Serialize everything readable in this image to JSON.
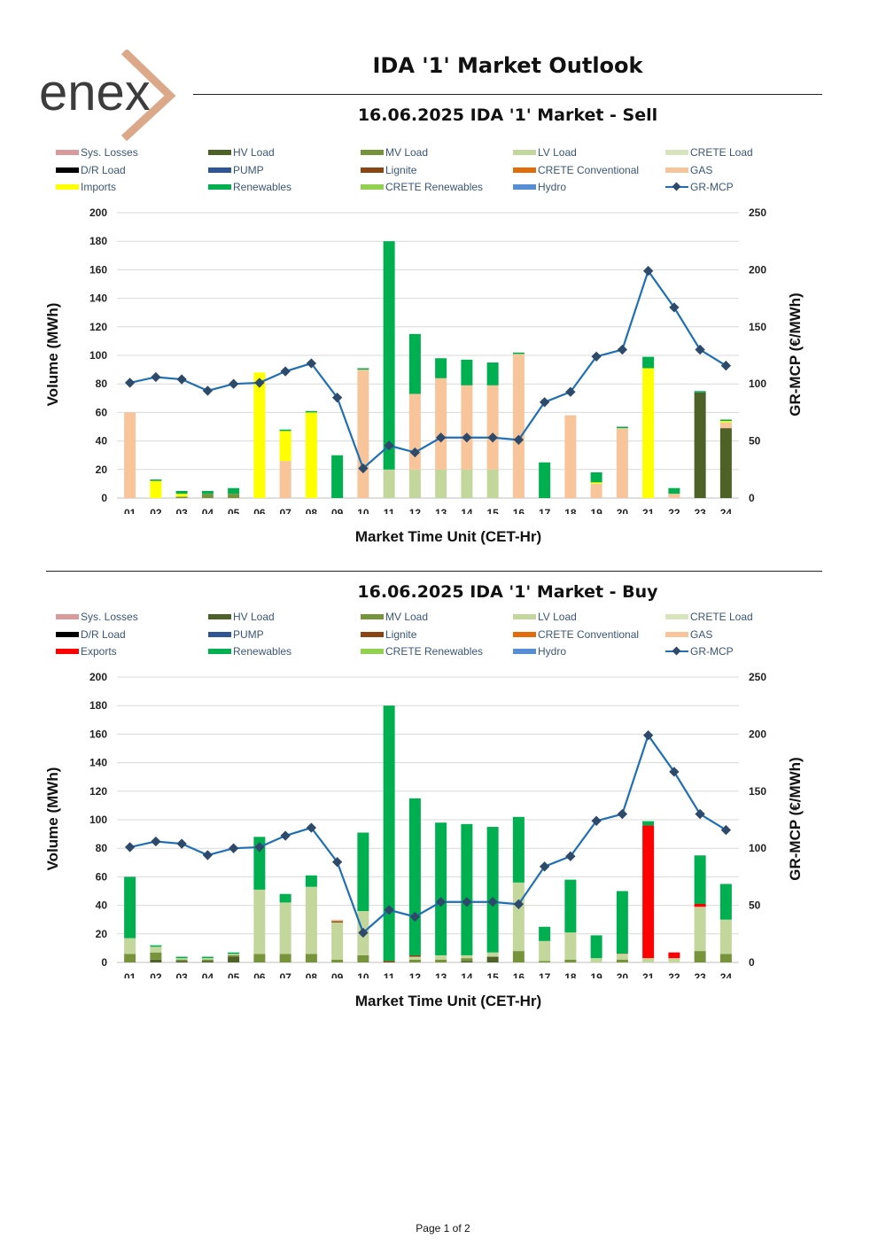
{
  "header": {
    "logo_text": "enex",
    "title": "IDA '1' Market Outlook"
  },
  "footer": {
    "page": "Page 1 of 2"
  },
  "colors": {
    "sys_losses": "#d89a9a",
    "hv_load": "#4e6228",
    "mv_load": "#77933c",
    "lv_load": "#c3d69b",
    "crete_load": "#d8e4bc",
    "dr_load": "#000000",
    "pump": "#2f5597",
    "lignite": "#8b4513",
    "crete_conventional": "#e36c0a",
    "gas": "#f8c49a",
    "imports": "#ffff00",
    "exports": "#ff0000",
    "renewables": "#00b050",
    "crete_renewables": "#92d050",
    "hydro": "#558ed5",
    "mcp_line": "#1f6fb5",
    "mcp_marker": "#2e4a6b"
  },
  "chart_data": [
    {
      "type": "bar",
      "stacked": true,
      "title": "16.06.2025  IDA '1' Market - Sell",
      "xlabel": "Market Time Unit (CET-Hr)",
      "ylabel": "Volume (MWh)",
      "y2label": "GR-MCP (€/MWh)",
      "ylim": [
        0,
        200
      ],
      "yticks": [
        0,
        20,
        40,
        60,
        80,
        100,
        120,
        140,
        160,
        180,
        200
      ],
      "y2lim": [
        0,
        250
      ],
      "y2ticks": [
        0,
        50,
        100,
        150,
        200,
        250
      ],
      "grid": true,
      "legend": [
        {
          "label": "Sys. Losses",
          "key": "sys_losses"
        },
        {
          "label": "HV Load",
          "key": "hv_load"
        },
        {
          "label": "MV Load",
          "key": "mv_load"
        },
        {
          "label": "LV Load",
          "key": "lv_load"
        },
        {
          "label": "CRETE Load",
          "key": "crete_load"
        },
        {
          "label": "D/R Load",
          "key": "dr_load"
        },
        {
          "label": "PUMP",
          "key": "pump"
        },
        {
          "label": "Lignite",
          "key": "lignite"
        },
        {
          "label": "CRETE Conventional",
          "key": "crete_conventional"
        },
        {
          "label": "GAS",
          "key": "gas"
        },
        {
          "label": "Imports",
          "key": "imports"
        },
        {
          "label": "Renewables",
          "key": "renewables"
        },
        {
          "label": "CRETE Renewables",
          "key": "crete_renewables"
        },
        {
          "label": "Hydro",
          "key": "hydro"
        },
        {
          "label": "GR-MCP",
          "key": "mcp_line",
          "line": true
        }
      ],
      "categories": [
        "01",
        "02",
        "03",
        "04",
        "05",
        "06",
        "07",
        "08",
        "09",
        "10",
        "11",
        "12",
        "13",
        "14",
        "15",
        "16",
        "17",
        "18",
        "19",
        "20",
        "21",
        "22",
        "23",
        "24"
      ],
      "series": [
        {
          "name": "HV Load",
          "key": "hv_load",
          "values": [
            0,
            0,
            0,
            0,
            0,
            0,
            0,
            0,
            0,
            0,
            0,
            0,
            0,
            0,
            0,
            0,
            0,
            0,
            0,
            0,
            0,
            0,
            74,
            49
          ]
        },
        {
          "name": "MV Load",
          "key": "mv_load",
          "values": [
            0,
            0,
            1,
            3,
            3,
            0,
            0,
            0,
            0,
            0,
            0,
            0,
            0,
            0,
            0,
            0,
            0,
            0,
            0,
            0,
            0,
            0,
            0,
            0
          ]
        },
        {
          "name": "LV Load",
          "key": "lv_load",
          "values": [
            0,
            0,
            0,
            0,
            0,
            0,
            0,
            0,
            0,
            0,
            20,
            20,
            20,
            20,
            20,
            0,
            0,
            0,
            0,
            0,
            0,
            0,
            0,
            0
          ]
        },
        {
          "name": "GAS",
          "key": "gas",
          "values": [
            60,
            0,
            0,
            0,
            0,
            0,
            26,
            0,
            0,
            90,
            0,
            53,
            64,
            59,
            59,
            101,
            0,
            58,
            10,
            49,
            0,
            3,
            0,
            4
          ]
        },
        {
          "name": "Imports",
          "key": "imports",
          "values": [
            0,
            12,
            2,
            0,
            0,
            88,
            21,
            60,
            0,
            0,
            0,
            0,
            0,
            0,
            0,
            0,
            0,
            0,
            1,
            0,
            91,
            0,
            0,
            1
          ]
        },
        {
          "name": "Renewables",
          "key": "renewables",
          "values": [
            0,
            1,
            2,
            2,
            4,
            0,
            1,
            1,
            30,
            1,
            160,
            42,
            14,
            18,
            16,
            1,
            25,
            0,
            7,
            1,
            8,
            4,
            1,
            1
          ]
        }
      ],
      "mcp": [
        101,
        106,
        104,
        94,
        100,
        101,
        111,
        118,
        88,
        26,
        46,
        40,
        53,
        53,
        53,
        51,
        84,
        93,
        124,
        130,
        199,
        167,
        130,
        116
      ]
    },
    {
      "type": "bar",
      "stacked": true,
      "title": "16.06.2025  IDA '1' Market - Buy",
      "xlabel": "Market Time Unit (CET-Hr)",
      "ylabel": "Volume (MWh)",
      "y2label": "GR-MCP (€/MWh)",
      "ylim": [
        0,
        200
      ],
      "yticks": [
        0,
        20,
        40,
        60,
        80,
        100,
        120,
        140,
        160,
        180,
        200
      ],
      "y2lim": [
        0,
        250
      ],
      "y2ticks": [
        0,
        50,
        100,
        150,
        200,
        250
      ],
      "grid": true,
      "legend": [
        {
          "label": "Sys. Losses",
          "key": "sys_losses"
        },
        {
          "label": "HV Load",
          "key": "hv_load"
        },
        {
          "label": "MV Load",
          "key": "mv_load"
        },
        {
          "label": "LV Load",
          "key": "lv_load"
        },
        {
          "label": "CRETE Load",
          "key": "crete_load"
        },
        {
          "label": "D/R Load",
          "key": "dr_load"
        },
        {
          "label": "PUMP",
          "key": "pump"
        },
        {
          "label": "Lignite",
          "key": "lignite"
        },
        {
          "label": "CRETE Conventional",
          "key": "crete_conventional"
        },
        {
          "label": "GAS",
          "key": "gas"
        },
        {
          "label": "Exports",
          "key": "exports"
        },
        {
          "label": "Renewables",
          "key": "renewables"
        },
        {
          "label": "CRETE Renewables",
          "key": "crete_renewables"
        },
        {
          "label": "Hydro",
          "key": "hydro"
        },
        {
          "label": "GR-MCP",
          "key": "mcp_line",
          "line": true
        }
      ],
      "categories": [
        "01",
        "02",
        "03",
        "04",
        "05",
        "06",
        "07",
        "08",
        "09",
        "10",
        "11",
        "12",
        "13",
        "14",
        "15",
        "16",
        "17",
        "18",
        "19",
        "20",
        "21",
        "22",
        "23",
        "24"
      ],
      "series": [
        {
          "name": "HV Load",
          "key": "hv_load",
          "values": [
            0,
            2,
            1,
            1,
            4,
            0,
            0,
            0,
            0,
            0,
            0,
            0,
            0,
            1,
            4,
            0,
            0,
            0,
            0,
            0,
            0,
            0,
            0,
            0
          ]
        },
        {
          "name": "MV Load",
          "key": "mv_load",
          "values": [
            6,
            5,
            1,
            1,
            1,
            6,
            6,
            6,
            2,
            5,
            0,
            2,
            2,
            2,
            0,
            8,
            1,
            2,
            0,
            2,
            0,
            0,
            8,
            6
          ]
        },
        {
          "name": "LV Load",
          "key": "lv_load",
          "values": [
            11,
            4,
            1,
            1,
            1,
            45,
            36,
            47,
            26,
            31,
            0,
            2,
            3,
            2,
            3,
            48,
            14,
            19,
            3,
            3,
            3,
            3,
            31,
            24
          ]
        },
        {
          "name": "Lignite",
          "key": "lignite",
          "values": [
            0,
            0,
            0,
            0,
            0,
            0,
            0,
            0,
            1,
            0,
            1,
            1,
            0,
            0,
            0,
            0,
            0,
            0,
            0,
            0,
            0,
            0,
            0,
            0
          ]
        },
        {
          "name": "GAS",
          "key": "gas",
          "values": [
            0,
            0,
            0,
            0,
            0,
            0,
            0,
            0,
            1,
            0,
            0,
            0,
            0,
            0,
            0,
            0,
            0,
            0,
            0,
            1,
            0,
            0,
            0,
            0
          ]
        },
        {
          "name": "Exports",
          "key": "exports",
          "values": [
            0,
            0,
            0,
            0,
            0,
            0,
            0,
            0,
            0,
            0,
            0,
            0,
            0,
            0,
            0,
            0,
            0,
            0,
            0,
            0,
            93,
            4,
            2,
            0
          ]
        },
        {
          "name": "Renewables",
          "key": "renewables",
          "values": [
            43,
            1,
            1,
            1,
            1,
            37,
            6,
            8,
            0,
            55,
            179,
            110,
            93,
            92,
            88,
            46,
            10,
            37,
            16,
            44,
            3,
            0,
            34,
            25
          ]
        }
      ],
      "mcp": [
        101,
        106,
        104,
        94,
        100,
        101,
        111,
        118,
        88,
        26,
        46,
        40,
        53,
        53,
        53,
        51,
        84,
        93,
        124,
        130,
        199,
        167,
        130,
        116
      ]
    }
  ]
}
